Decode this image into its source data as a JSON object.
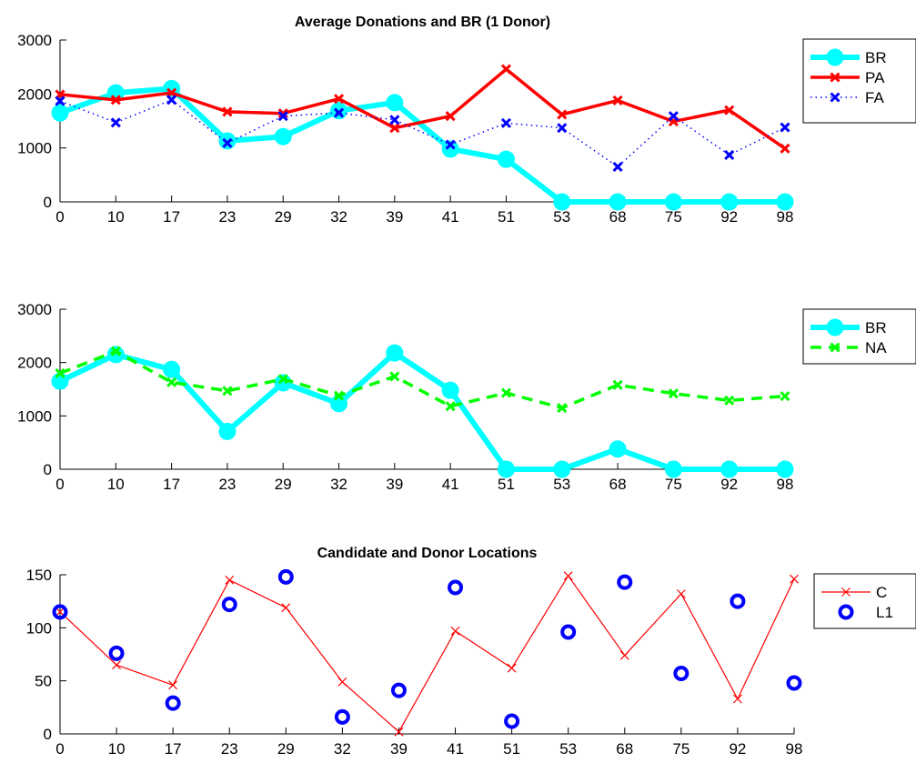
{
  "chart_data": [
    {
      "type": "line",
      "title": "Average Donations and BR (1 Donor)",
      "categories": [
        "0",
        "10",
        "17",
        "23",
        "29",
        "32",
        "39",
        "41",
        "51",
        "53",
        "68",
        "75",
        "92",
        "98"
      ],
      "ylim": [
        0,
        3000
      ],
      "yticks": [
        "0",
        "1000",
        "2000",
        "3000"
      ],
      "legend_position": "right",
      "series": [
        {
          "name": "BR",
          "color": "#00ffff",
          "style": "solid-thick-circle",
          "values": [
            1650,
            2020,
            2100,
            1130,
            1210,
            1690,
            1840,
            980,
            790,
            0,
            0,
            0,
            0,
            0
          ]
        },
        {
          "name": "PA",
          "color": "#ff0000",
          "style": "solid-x",
          "values": [
            1990,
            1890,
            2020,
            1670,
            1640,
            1910,
            1370,
            1590,
            2460,
            1620,
            1880,
            1490,
            1700,
            990
          ]
        },
        {
          "name": "FA",
          "color": "#0000ff",
          "style": "dotted-x",
          "values": [
            1870,
            1470,
            1890,
            1090,
            1590,
            1650,
            1520,
            1060,
            1460,
            1370,
            650,
            1590,
            870,
            1380
          ]
        }
      ]
    },
    {
      "type": "line",
      "title": "",
      "categories": [
        "0",
        "10",
        "17",
        "23",
        "29",
        "32",
        "39",
        "41",
        "51",
        "53",
        "68",
        "75",
        "92",
        "98"
      ],
      "ylim": [
        0,
        3000
      ],
      "yticks": [
        "0",
        "1000",
        "2000",
        "3000"
      ],
      "legend_position": "right",
      "series": [
        {
          "name": "BR",
          "color": "#00ffff",
          "style": "solid-thick-circle",
          "values": [
            1650,
            2150,
            1870,
            710,
            1620,
            1230,
            2180,
            1480,
            0,
            0,
            380,
            0,
            0,
            0
          ]
        },
        {
          "name": "NA",
          "color": "#00ff00",
          "style": "dashed-x",
          "values": [
            1800,
            2210,
            1630,
            1470,
            1690,
            1380,
            1740,
            1180,
            1430,
            1150,
            1580,
            1420,
            1290,
            1370
          ]
        }
      ]
    },
    {
      "type": "line",
      "title": "Candidate and Donor Locations",
      "categories": [
        "0",
        "10",
        "17",
        "23",
        "29",
        "32",
        "39",
        "41",
        "51",
        "53",
        "68",
        "75",
        "92",
        "98"
      ],
      "ylim": [
        0,
        150
      ],
      "yticks": [
        "0",
        "50",
        "100",
        "150"
      ],
      "legend_position": "right",
      "series": [
        {
          "name": "C",
          "color": "#ff0000",
          "style": "thin-x",
          "values": [
            115,
            65,
            46,
            145,
            119,
            49,
            2,
            97,
            62,
            149,
            74,
            132,
            33,
            146
          ]
        },
        {
          "name": "L1",
          "color": "#0000ff",
          "style": "circles-only",
          "values": [
            115,
            76,
            29,
            122,
            148,
            16,
            41,
            138,
            12,
            96,
            143,
            57,
            125,
            48
          ]
        }
      ]
    }
  ]
}
